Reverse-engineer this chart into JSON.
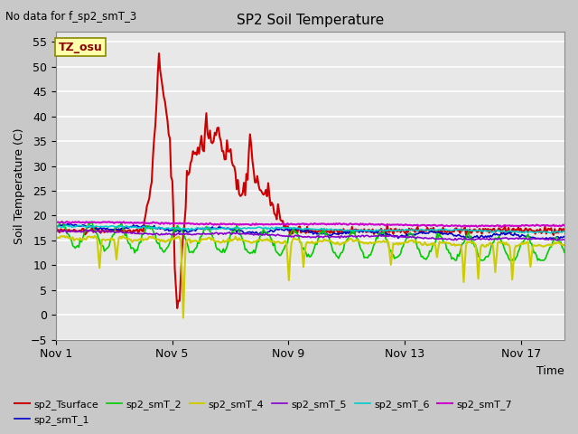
{
  "title": "SP2 Soil Temperature",
  "ylabel": "Soil Temperature (C)",
  "xlabel": "Time",
  "no_data_text": "No data for f_sp2_smT_3",
  "tz_label": "TZ_osu",
  "ylim": [
    -5,
    57
  ],
  "yticks": [
    -5,
    0,
    5,
    10,
    15,
    20,
    25,
    30,
    35,
    40,
    45,
    50,
    55
  ],
  "fig_bg_color": "#c8c8c8",
  "plot_bg_color": "#e8e8e8",
  "grid_color": "white",
  "series": {
    "sp2_Tsurface": {
      "color": "#cc0000",
      "linewidth": 1.5,
      "label": "sp2_Tsurface"
    },
    "sp2_smT_1": {
      "color": "#0000cc",
      "linewidth": 1.2,
      "label": "sp2_smT_1"
    },
    "sp2_smT_2": {
      "color": "#00cc00",
      "linewidth": 1.2,
      "label": "sp2_smT_2"
    },
    "sp2_smT_4": {
      "color": "#cccc00",
      "linewidth": 1.5,
      "label": "sp2_smT_4"
    },
    "sp2_smT_5": {
      "color": "#8800cc",
      "linewidth": 1.2,
      "label": "sp2_smT_5"
    },
    "sp2_smT_6": {
      "color": "#00cccc",
      "linewidth": 1.2,
      "label": "sp2_smT_6"
    },
    "sp2_smT_7": {
      "color": "#cc00cc",
      "linewidth": 1.5,
      "label": "sp2_smT_7"
    }
  },
  "legend_order": [
    "sp2_Tsurface",
    "sp2_smT_1",
    "sp2_smT_2",
    "sp2_smT_4",
    "sp2_smT_5",
    "sp2_smT_6",
    "sp2_smT_7"
  ],
  "xtick_labels": [
    "Nov 1",
    "Nov 5",
    "Nov 9",
    "Nov 13",
    "Nov 17"
  ],
  "xtick_days": [
    1,
    5,
    9,
    13,
    17
  ],
  "xlim": [
    0,
    17.5
  ],
  "figsize": [
    6.4,
    4.8
  ],
  "dpi": 100
}
